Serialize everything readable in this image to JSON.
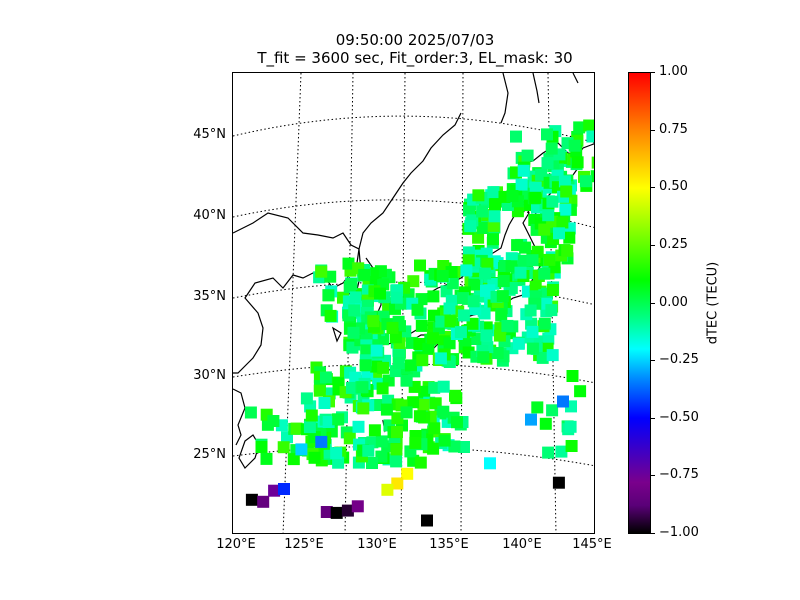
{
  "title": {
    "line1": "09:50:00 2025/07/03",
    "line2": "T_fit = 3600 sec, Fit_order:3, EL_mask: 30"
  },
  "map": {
    "projection": "polyconic",
    "lat_labels": [
      "45°N",
      "40°N",
      "35°N",
      "30°N",
      "25°N"
    ],
    "lon_labels": [
      "120°E",
      "125°E",
      "130°E",
      "135°E",
      "140°E",
      "145°E"
    ],
    "graticule_style": "dotted"
  },
  "colorbar": {
    "label": "dTEC (TECU)",
    "ticks": [
      "1.00",
      "0.75",
      "0.50",
      "0.25",
      "0.00",
      "−0.25",
      "−0.50",
      "−0.75",
      "−1.00"
    ],
    "range": [
      -1.0,
      1.0
    ],
    "colormap": "nipy_spectral-like (black→purple→blue→cyan→green→yellow→red)"
  },
  "chart_data": {
    "type": "heatmap",
    "title": "09:50:00 2025/07/03",
    "subtitle": "T_fit = 3600 sec, Fit_order:3, EL_mask: 30",
    "xlabel": "",
    "ylabel": "",
    "xlim": [
      120,
      145
    ],
    "ylim": [
      20,
      48
    ],
    "value_label": "dTEC (TECU)",
    "value_range": [
      -1.0,
      1.0
    ],
    "points": [
      {
        "lon": 121.0,
        "lat": 22.0,
        "value": -1.0
      },
      {
        "lon": 121.8,
        "lat": 22.0,
        "value": -0.85
      },
      {
        "lon": 122.6,
        "lat": 22.8,
        "value": -0.75
      },
      {
        "lon": 123.3,
        "lat": 23.0,
        "value": -0.45
      },
      {
        "lon": 126.3,
        "lat": 21.9,
        "value": -0.85
      },
      {
        "lon": 127.0,
        "lat": 21.9,
        "value": -1.0
      },
      {
        "lon": 127.8,
        "lat": 22.1,
        "value": -0.95
      },
      {
        "lon": 128.5,
        "lat": 22.4,
        "value": -0.8
      },
      {
        "lon": 133.4,
        "lat": 21.6,
        "value": -1.0
      },
      {
        "lon": 142.7,
        "lat": 23.1,
        "value": -1.0
      },
      {
        "lon": 132.0,
        "lat": 24.5,
        "value": 0.5
      },
      {
        "lon": 131.3,
        "lat": 23.9,
        "value": 0.55
      },
      {
        "lon": 130.6,
        "lat": 23.5,
        "value": 0.45
      },
      {
        "lon": 126.0,
        "lat": 26.2,
        "value": -0.35
      },
      {
        "lon": 124.6,
        "lat": 25.6,
        "value": -0.25
      },
      {
        "lon": 140.6,
        "lat": 27.3,
        "value": -0.3
      },
      {
        "lon": 142.8,
        "lat": 28.1,
        "value": -0.35
      },
      {
        "lon": 137.8,
        "lat": 24.9,
        "value": -0.2
      },
      {
        "lon": 139.9,
        "lat": 38.0,
        "value": 0.05
      },
      {
        "lon": 140.5,
        "lat": 41.0,
        "value": 0.1
      },
      {
        "lon": 136.5,
        "lat": 35.0,
        "value": -0.05
      },
      {
        "lon": 131.0,
        "lat": 33.5,
        "value": 0.15
      },
      {
        "lon": 128.5,
        "lat": 35.3,
        "value": -0.1
      }
    ]
  }
}
